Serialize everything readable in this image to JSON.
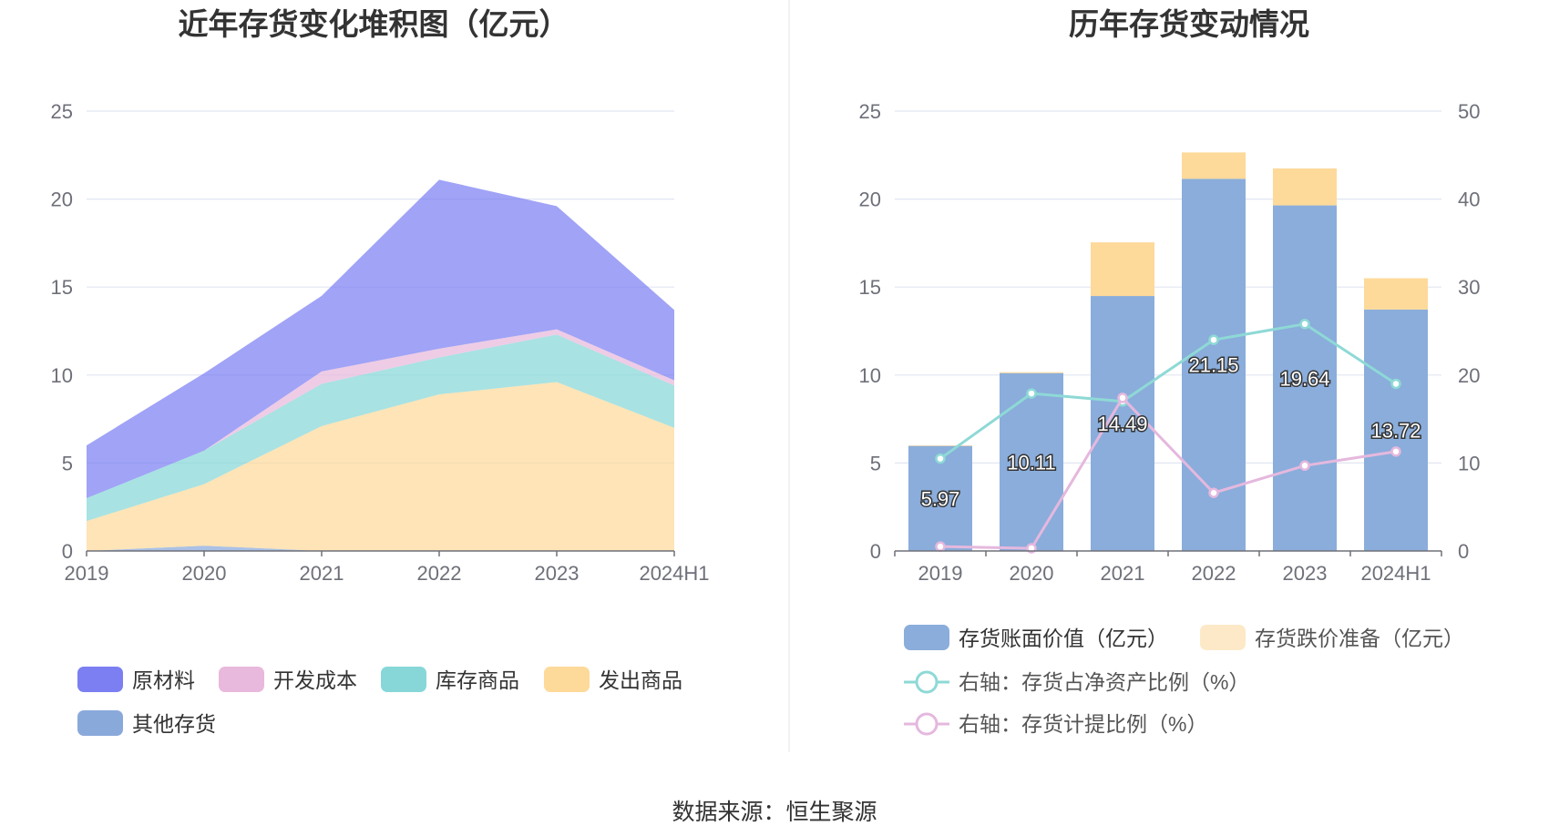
{
  "left_chart": {
    "title": "近年存货变化堆积图（亿元）",
    "y_ticks": [
      "0",
      "5",
      "10",
      "15",
      "20",
      "25"
    ],
    "legend": [
      {
        "label": "原材料",
        "color": "#7b7ff2"
      },
      {
        "label": "开发成本",
        "color": "#e8b9dc"
      },
      {
        "label": "库存商品",
        "color": "#87d7d8"
      },
      {
        "label": "发出商品",
        "color": "#fdd99a"
      },
      {
        "label": "其他存货",
        "color": "#8aa9db"
      }
    ]
  },
  "right_chart": {
    "title": "历年存货变动情况",
    "y_ticks_left": [
      "0",
      "5",
      "10",
      "15",
      "20",
      "25"
    ],
    "y_ticks_right": [
      "0",
      "10",
      "20",
      "30",
      "40",
      "50"
    ],
    "legend": [
      {
        "label": "存货账面价值（亿元）",
        "color": "#8aaddb"
      },
      {
        "label": "存货跌价准备（亿元）",
        "color": "#fde9c8"
      },
      {
        "label": "右轴：存货占净资产比例（%）",
        "color": "#8ed9d6"
      },
      {
        "label": "右轴：存货计提比例（%）",
        "color": "#e5b8de"
      }
    ]
  },
  "chart_data": [
    {
      "type": "area",
      "stacked": true,
      "title": "近年存货变化堆积图（亿元）",
      "categories": [
        "2019",
        "2020",
        "2021",
        "2022",
        "2023",
        "2024H1"
      ],
      "ylim": [
        0,
        25
      ],
      "series": [
        {
          "name": "其他存货",
          "color": "#8aa9db",
          "values": [
            0.0,
            0.3,
            0.0,
            0.0,
            0.0,
            0.0
          ]
        },
        {
          "name": "发出商品",
          "color": "#fdd99a",
          "values": [
            1.7,
            3.5,
            7.1,
            8.9,
            9.6,
            7.0
          ]
        },
        {
          "name": "库存商品",
          "color": "#87d7d8",
          "values": [
            1.3,
            1.9,
            2.4,
            2.1,
            2.7,
            2.4
          ]
        },
        {
          "name": "开发成本",
          "color": "#e8b9dc",
          "values": [
            0.0,
            0.0,
            0.7,
            0.5,
            0.3,
            0.3
          ]
        },
        {
          "name": "原材料",
          "color": "#7b7ff2",
          "values": [
            3.0,
            4.4,
            4.3,
            9.6,
            7.0,
            4.0
          ]
        }
      ]
    },
    {
      "type": "bar",
      "stacked": true,
      "title": "历年存货变动情况",
      "categories": [
        "2019",
        "2020",
        "2021",
        "2022",
        "2023",
        "2024H1"
      ],
      "ylim": [
        0,
        25
      ],
      "y2lim": [
        0,
        50
      ],
      "series": [
        {
          "name": "存货账面价值（亿元）",
          "color": "#8aaddb",
          "values": [
            5.97,
            10.11,
            14.49,
            21.15,
            19.64,
            13.72
          ],
          "labels": [
            "5.97",
            "10.11",
            "14.49",
            "21.15",
            "19.64",
            "13.72"
          ]
        },
        {
          "name": "存货跌价准备（亿元）",
          "color": "#fdd99a",
          "values": [
            0.03,
            0.05,
            3.05,
            1.5,
            2.1,
            1.78
          ]
        }
      ],
      "lines": [
        {
          "name": "右轴：存货占净资产比例（%）",
          "color": "#8ed9d6",
          "axis": "right",
          "values": [
            10.5,
            17.9,
            17.0,
            24.0,
            25.8,
            19.0
          ]
        },
        {
          "name": "右轴：存货计提比例（%）",
          "color": "#e5b8de",
          "axis": "right",
          "values": [
            0.5,
            0.3,
            17.4,
            6.6,
            9.7,
            11.3
          ]
        }
      ]
    }
  ],
  "footer": {
    "source": "数据来源：恒生聚源"
  }
}
